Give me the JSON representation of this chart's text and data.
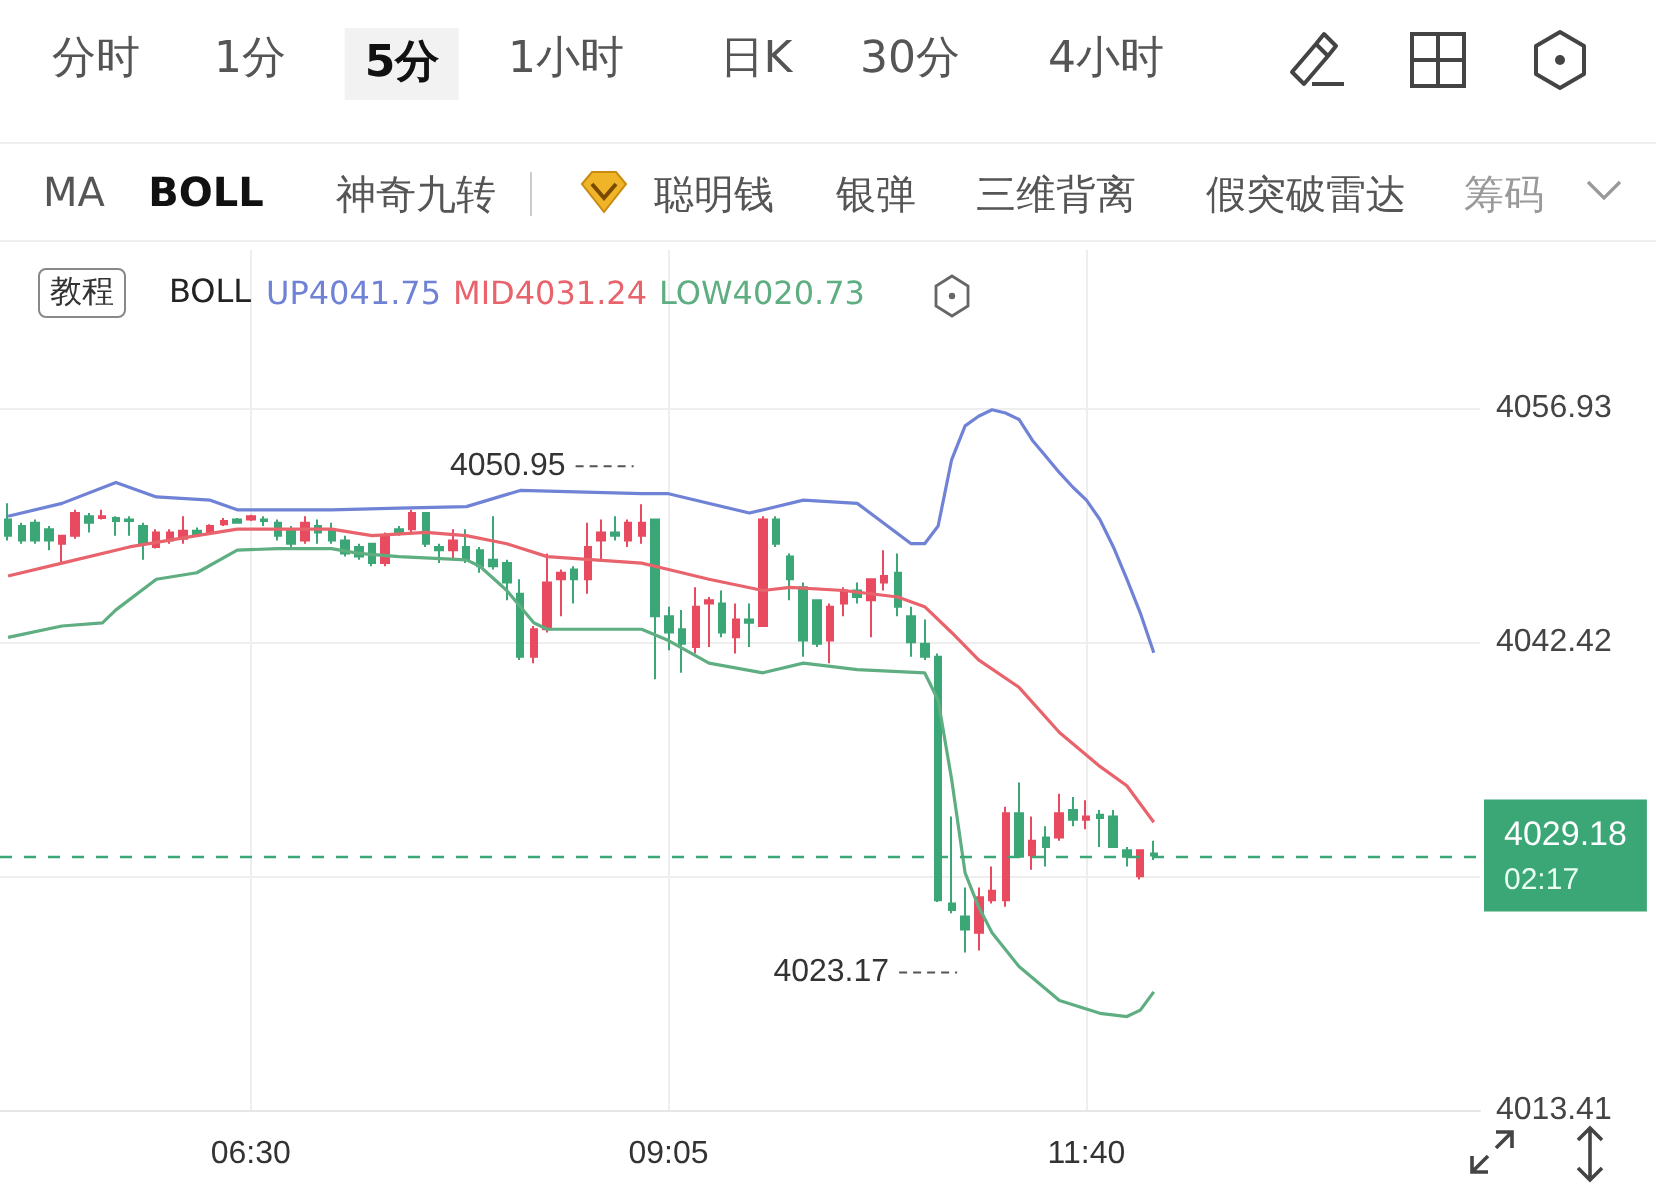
{
  "chart_data": {
    "type": "candlestick",
    "legend_title": "BOLL",
    "annotations": [
      "分时",
      "1分",
      "5分",
      "1小时",
      "日K",
      "30分",
      "4小时",
      "MA",
      "BOLL",
      "神奇九转",
      "聪明钱",
      "银弹",
      "三维背离",
      "假突破雷达",
      "筹码",
      "教程",
      "02:17",
      {
        "text": "4050.95",
        "x": 8.9167,
        "y": 4050.95
      },
      {
        "text": "4023.17",
        "x": 10.9167,
        "y": 4023.17
      }
    ],
    "x": [
      5,
      5.0833,
      5.1667,
      5.25,
      5.3333,
      5.4167,
      5.5,
      5.5833,
      5.6667,
      5.75,
      5.8333,
      5.9167,
      6,
      6.0833,
      6.1667,
      6.25,
      6.3333,
      6.4167,
      6.5,
      6.5833,
      6.6667,
      6.75,
      6.8333,
      6.9167,
      7,
      7.0833,
      7.1667,
      7.25,
      7.3333,
      7.4167,
      7.5,
      7.5833,
      7.6667,
      7.75,
      7.8333,
      7.9167,
      8,
      8.0833,
      8.1667,
      8.25,
      8.3333,
      8.4167,
      8.5,
      8.5833,
      8.6667,
      8.75,
      8.8333,
      8.9167,
      9,
      9.0833,
      9.1667,
      9.25,
      9.3333,
      9.4167,
      9.5,
      9.5833,
      9.6667,
      9.75,
      9.8333,
      9.9167,
      10,
      10.0833,
      10.1667,
      10.25,
      10.3333,
      10.4167,
      10.5,
      10.5833,
      10.6667,
      10.75,
      10.8333,
      10.9167,
      11,
      11.0833,
      11.1667,
      11.25,
      11.3333,
      11.4167,
      11.5,
      11.5833,
      11.6667,
      11.75,
      11.8333,
      11.9167,
      12,
      12.0833
    ],
    "ohlc": [
      [
        4050.0,
        4051.0,
        4048.7,
        4049.0
      ],
      [
        4049.6,
        4049.8,
        4048.5,
        4048.7
      ],
      [
        4049.8,
        4050.0,
        4048.5,
        4048.7
      ],
      [
        4049.4,
        4049.6,
        4048.1,
        4048.7
      ],
      [
        4048.5,
        4049.0,
        4047.3,
        4049.0
      ],
      [
        4049.0,
        4050.6,
        4048.8,
        4050.4
      ],
      [
        4050.2,
        4050.4,
        4049.2,
        4049.8
      ],
      [
        4050.1,
        4050.6,
        4050.0,
        4050.2
      ],
      [
        4050.1,
        4050.2,
        4049.0,
        4049.9
      ],
      [
        4050.0,
        4050.2,
        4049.0,
        4049.9
      ],
      [
        4049.6,
        4049.8,
        4047.5,
        4048.5
      ],
      [
        4048.3,
        4049.4,
        4048.2,
        4049.2
      ],
      [
        4048.7,
        4049.4,
        4048.5,
        4049.2
      ],
      [
        4048.8,
        4050.2,
        4048.5,
        4049.3
      ],
      [
        4049.3,
        4049.5,
        4049.0,
        4049.1
      ],
      [
        4049.2,
        4049.7,
        4049.1,
        4049.6
      ],
      [
        4049.7,
        4050.1,
        4049.6,
        4049.9
      ],
      [
        4050.0,
        4050.1,
        4049.8,
        4049.8
      ],
      [
        4050.0,
        4050.3,
        4049.9,
        4050.2
      ],
      [
        4050.0,
        4050.2,
        4049.6,
        4049.9
      ],
      [
        4049.8,
        4050.0,
        4048.7,
        4049.0
      ],
      [
        4049.4,
        4049.6,
        4048.3,
        4048.5
      ],
      [
        4048.7,
        4050.2,
        4048.5,
        4049.8
      ],
      [
        4049.6,
        4050.0,
        4048.5,
        4049.2
      ],
      [
        4049.4,
        4049.8,
        4048.5,
        4048.7
      ],
      [
        4048.7,
        4049.0,
        4047.7,
        4047.9
      ],
      [
        4048.3,
        4048.5,
        4047.5,
        4047.7
      ],
      [
        4048.5,
        4048.5,
        4047.1,
        4047.3
      ],
      [
        4047.3,
        4049.2,
        4047.1,
        4049.0
      ],
      [
        4049.4,
        4049.6,
        4049.0,
        4049.2
      ],
      [
        4049.4,
        4050.6,
        4049.2,
        4050.4
      ],
      [
        4050.4,
        4050.4,
        4048.3,
        4048.5
      ],
      [
        4048.3,
        4048.5,
        4047.3,
        4048.1
      ],
      [
        4048.1,
        4049.4,
        4047.5,
        4048.7
      ],
      [
        4048.3,
        4049.4,
        4047.3,
        4047.5
      ],
      [
        4048.1,
        4048.3,
        4046.7,
        4047.1
      ],
      [
        4047.5,
        4050.2,
        4046.9,
        4047.1
      ],
      [
        4047.3,
        4047.5,
        4045.0,
        4046.1
      ],
      [
        4045.4,
        4046.3,
        4041.3,
        4041.5
      ],
      [
        4041.5,
        4043.4,
        4041.1,
        4043.2
      ],
      [
        4043.2,
        4047.9,
        4043.0,
        4046.1
      ],
      [
        4046.3,
        4046.9,
        4044.0,
        4046.7
      ],
      [
        4046.9,
        4047.1,
        4044.8,
        4046.3
      ],
      [
        4046.3,
        4049.8,
        4045.4,
        4048.3
      ],
      [
        4048.7,
        4050.0,
        4047.5,
        4049.2
      ],
      [
        4049.2,
        4050.2,
        4048.7,
        4049.0
      ],
      [
        4048.7,
        4050.0,
        4048.3,
        4049.8
      ],
      [
        4049.0,
        4050.95,
        4048.5,
        4049.8
      ],
      [
        4050.0,
        4050.0,
        4040.1,
        4044.0
      ],
      [
        4044.0,
        4044.6,
        4041.9,
        4043.0
      ],
      [
        4043.2,
        4044.4,
        4040.5,
        4042.3
      ],
      [
        4042.1,
        4045.8,
        4041.7,
        4044.6
      ],
      [
        4044.8,
        4045.2,
        4042.1,
        4045.0
      ],
      [
        4044.8,
        4045.6,
        4042.7,
        4043.0
      ],
      [
        4042.7,
        4044.8,
        4041.7,
        4043.8
      ],
      [
        4043.8,
        4044.8,
        4042.1,
        4043.6
      ],
      [
        4043.4,
        4050.2,
        4043.4,
        4050.0
      ],
      [
        4050.0,
        4050.2,
        4048.3,
        4048.5
      ],
      [
        4047.7,
        4047.9,
        4045.0,
        4046.3
      ],
      [
        4045.8,
        4046.1,
        4041.5,
        4042.5
      ],
      [
        4045.0,
        4045.0,
        4042.1,
        4042.3
      ],
      [
        4042.5,
        4044.8,
        4041.1,
        4044.6
      ],
      [
        4044.8,
        4045.8,
        4044.0,
        4045.6
      ],
      [
        4045.6,
        4046.1,
        4044.8,
        4045.2
      ],
      [
        4045.0,
        4046.3,
        4042.7,
        4046.3
      ],
      [
        4046.1,
        4048.1,
        4045.6,
        4046.5
      ],
      [
        4046.7,
        4047.9,
        4044.0,
        4044.6
      ],
      [
        4044.0,
        4044.6,
        4041.5,
        4042.4
      ],
      [
        4042.3,
        4043.8,
        4041.3,
        4041.5
      ],
      [
        4041.5,
        4041.7,
        4026.3,
        4026.4
      ],
      [
        4026.2,
        4031.6,
        4025.6,
        4025.8
      ],
      [
        4025.4,
        4027.2,
        4023.17,
        4024.6
      ],
      [
        4024.4,
        4027.2,
        4023.3,
        4026.6
      ],
      [
        4026.4,
        4028.5,
        4026.2,
        4027.0
      ],
      [
        4026.4,
        4032.2,
        4026.0,
        4031.8
      ],
      [
        4031.8,
        4033.7,
        4029.1,
        4029.1
      ],
      [
        4029.2,
        4031.6,
        4028.3,
        4030.1
      ],
      [
        4030.3,
        4031.0,
        4028.5,
        4029.7
      ],
      [
        4030.3,
        4033.0,
        4030.1,
        4031.8
      ],
      [
        4032.0,
        4032.8,
        4031.0,
        4031.4
      ],
      [
        4031.4,
        4032.6,
        4030.8,
        4031.6
      ],
      [
        4031.7,
        4032.0,
        4029.7,
        4031.5
      ],
      [
        4031.6,
        4032.0,
        4029.7,
        4029.7
      ],
      [
        4029.5,
        4029.7,
        4028.5,
        4029.1
      ],
      [
        4027.9,
        4029.5,
        4027.7,
        4029.5
      ],
      [
        4029.3,
        4030.1,
        4028.9,
        4029.18
      ]
    ],
    "colors": [
      "#3ba676",
      "#3ba676",
      "#3ba676",
      "#3ba676",
      "#e84a5f",
      "#e84a5f",
      "#3ba676",
      "#e84a5f",
      "#3ba676",
      "#3ba676",
      "#3ba676",
      "#e84a5f",
      "#e84a5f",
      "#e84a5f",
      "#3ba676",
      "#e84a5f",
      "#e84a5f",
      "#3ba676",
      "#e84a5f",
      "#3ba676",
      "#3ba676",
      "#3ba676",
      "#e84a5f",
      "#3ba676",
      "#3ba676",
      "#3ba676",
      "#3ba676",
      "#3ba676",
      "#e84a5f",
      "#3ba676",
      "#e84a5f",
      "#3ba676",
      "#3ba676",
      "#e84a5f",
      "#3ba676",
      "#3ba676",
      "#3ba676",
      "#3ba676",
      "#3ba676",
      "#e84a5f",
      "#e84a5f",
      "#e84a5f",
      "#3ba676",
      "#e84a5f",
      "#e84a5f",
      "#3ba676",
      "#e84a5f",
      "#e84a5f",
      "#3ba676",
      "#3ba676",
      "#3ba676",
      "#e84a5f",
      "#e84a5f",
      "#3ba676",
      "#e84a5f",
      "#3ba676",
      "#e84a5f",
      "#3ba676",
      "#3ba676",
      "#3ba676",
      "#3ba676",
      "#e84a5f",
      "#e84a5f",
      "#3ba676",
      "#e84a5f",
      "#e84a5f",
      "#3ba676",
      "#3ba676",
      "#3ba676",
      "#3ba676",
      "#3ba676",
      "#3ba676",
      "#e84a5f",
      "#e84a5f",
      "#e84a5f",
      "#3ba676",
      "#e84a5f",
      "#3ba676",
      "#e84a5f",
      "#3ba676",
      "#e84a5f",
      "#3ba676",
      "#3ba676",
      "#3ba676",
      "#e84a5f",
      "#3ba676"
    ],
    "series": [
      {
        "name": "UP4041.75",
        "type": "line",
        "color": "#6f82d6",
        "x": [
          5,
          5.3333,
          5.6667,
          5.9167,
          6.25,
          6.4167,
          7,
          7.4167,
          7.8333,
          8.1667,
          8.9167,
          9.0833,
          9.5833,
          9.9167,
          10.25,
          10.5833,
          10.6667,
          10.75,
          10.8333,
          10.9167,
          11,
          11.0833,
          11.1667,
          11.25,
          11.3333,
          11.4167,
          11.5,
          11.5833,
          11.6667,
          11.75,
          11.8333,
          11.9167,
          12,
          12.0833
        ],
        "values": [
          4050.2,
          4051.0,
          4052.3,
          4051.4,
          4051.2,
          4050.6,
          4050.6,
          4050.7,
          4050.8,
          4051.8,
          4051.6,
          4051.6,
          4050.4,
          4051.2,
          4051.0,
          4048.5,
          4048.5,
          4049.6,
          4053.7,
          4055.8,
          4056.4,
          4056.8,
          4056.6,
          4056.2,
          4054.9,
          4053.9,
          4052.9,
          4052.0,
          4051.2,
          4050.0,
          4048.3,
          4046.3,
          4044.2,
          4041.75
        ]
      },
      {
        "name": "MID4031.24",
        "type": "line",
        "color": "#e8636c",
        "x": [
          5,
          5.3333,
          5.75,
          6.1667,
          6.4167,
          7,
          7.25,
          7.5833,
          7.8333,
          8.0833,
          8.3333,
          8.9167,
          9.0833,
          9.3333,
          9.6667,
          9.8333,
          10.1667,
          10.5,
          10.6667,
          10.8333,
          11,
          11.25,
          11.5,
          11.75,
          11.9167,
          12.0833
        ],
        "values": [
          4046.5,
          4047.3,
          4048.3,
          4049.0,
          4049.4,
          4049.4,
          4049.0,
          4049.2,
          4049.0,
          4048.5,
          4047.7,
          4047.3,
          4046.9,
          4046.3,
          4045.6,
          4045.8,
          4045.6,
          4045.2,
          4044.6,
          4043.0,
          4041.3,
          4039.6,
          4036.8,
          4034.7,
          4033.5,
          4031.24
        ]
      },
      {
        "name": "LOW4020.73",
        "type": "line",
        "color": "#5fae82",
        "x": [
          5,
          5.3333,
          5.5833,
          5.6667,
          5.9167,
          6.1667,
          6.4167,
          6.6667,
          7,
          7.1667,
          7.4167,
          7.8333,
          7.9167,
          8.0833,
          8.25,
          8.3333,
          8.9167,
          9.0833,
          9.3333,
          9.6667,
          9.9167,
          10.25,
          10.6667,
          10.75,
          10.8333,
          10.9167,
          11,
          11.0833,
          11.25,
          11.5,
          11.75,
          11.9167,
          12,
          12.0833
        ],
        "values": [
          4042.7,
          4043.4,
          4043.6,
          4044.4,
          4046.3,
          4046.7,
          4048.1,
          4048.2,
          4048.2,
          4047.9,
          4047.7,
          4047.5,
          4047.1,
          4045.6,
          4043.6,
          4043.2,
          4043.2,
          4042.5,
          4041.1,
          4040.5,
          4041.1,
          4040.7,
          4040.5,
          4038.8,
          4033.9,
          4028.1,
          4026.0,
          4024.4,
          4022.3,
          4020.2,
          4019.4,
          4019.2,
          4019.6,
          4020.73
        ]
      }
    ],
    "xlim": [
      4.95,
      14.1
    ],
    "xticks": [
      {
        "value": 6.5,
        "label": "06:30"
      },
      {
        "value": 9.0833,
        "label": "09:05"
      },
      {
        "value": 11.6667,
        "label": "11:40"
      }
    ],
    "ylim": [
      4013.41,
      4066.7
    ],
    "yticks": [
      4013.41,
      {
        "value": 4027.92,
        "label": null
      },
      4042.42,
      4056.93
    ],
    "ref_lines": [
      {
        "axis": "y",
        "value": 4029.18,
        "label": "4029.18",
        "color": "#3ba676",
        "line_style": "dashed"
      }
    ],
    "grid": true,
    "legend": "top",
    "marker": "none"
  }
}
